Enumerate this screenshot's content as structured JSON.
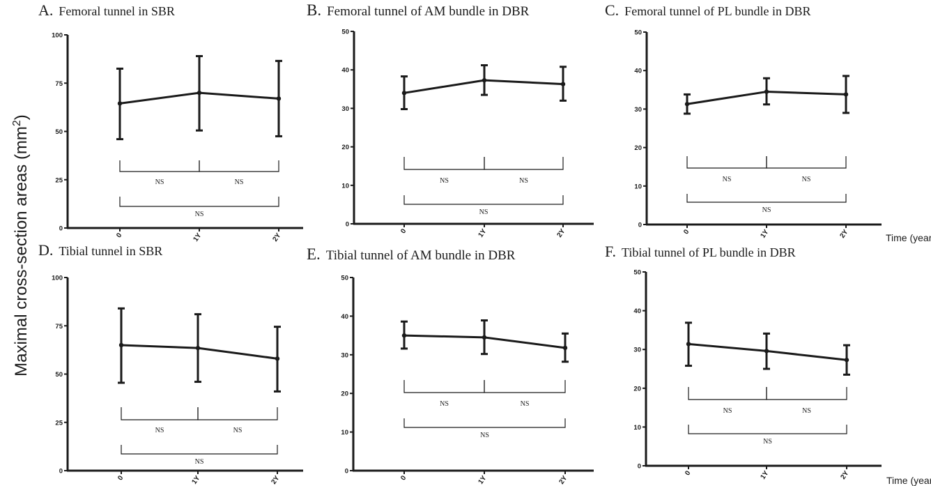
{
  "figure": {
    "y_axis_label": "Maximal cross-section areas (mm2)",
    "time_label": "Time (year)",
    "line_color": "#1a1a1a",
    "background": "#ffffff"
  },
  "chart_data": [
    {
      "type": "line",
      "title": "A.  Femoral tunnel in SBR",
      "categories": [
        "0",
        "1Y",
        "2Y"
      ],
      "series": [
        {
          "values": [
            64.5,
            70,
            67
          ],
          "error_low": [
            46,
            50.5,
            47.5
          ],
          "error_high": [
            82.5,
            89,
            86.5
          ]
        }
      ],
      "ylim": [
        0,
        100
      ],
      "yticks": [
        0,
        25,
        50,
        75,
        100
      ],
      "comparisons": [
        {
          "pair": [
            "0",
            "1Y"
          ],
          "label": "NS"
        },
        {
          "pair": [
            "1Y",
            "2Y"
          ],
          "label": "NS"
        },
        {
          "pair": [
            "0",
            "2Y"
          ],
          "label": "NS"
        }
      ]
    },
    {
      "type": "line",
      "title": "B.  Femoral tunnel of AM bundle in DBR",
      "categories": [
        "0",
        "1Y",
        "2Y"
      ],
      "series": [
        {
          "values": [
            34,
            37.3,
            36.3
          ],
          "error_low": [
            29.8,
            33.5,
            32
          ],
          "error_high": [
            38.3,
            41.2,
            40.8
          ]
        }
      ],
      "ylim": [
        0,
        50
      ],
      "yticks": [
        0,
        10,
        20,
        30,
        40,
        50
      ],
      "comparisons": [
        {
          "pair": [
            "0",
            "1Y"
          ],
          "label": "NS"
        },
        {
          "pair": [
            "1Y",
            "2Y"
          ],
          "label": "NS"
        },
        {
          "pair": [
            "0",
            "2Y"
          ],
          "label": "NS"
        }
      ]
    },
    {
      "type": "line",
      "title": "C.  Femoral tunnel of PL bundle in DBR",
      "categories": [
        "0",
        "1Y",
        "2Y"
      ],
      "series": [
        {
          "values": [
            31.3,
            34.5,
            33.8
          ],
          "error_low": [
            28.8,
            31.2,
            29
          ],
          "error_high": [
            33.8,
            38,
            38.6
          ]
        }
      ],
      "ylim": [
        0,
        50
      ],
      "yticks": [
        0,
        10,
        20,
        30,
        40,
        50
      ],
      "comparisons": [
        {
          "pair": [
            "0",
            "1Y"
          ],
          "label": "NS"
        },
        {
          "pair": [
            "1Y",
            "2Y"
          ],
          "label": "NS"
        },
        {
          "pair": [
            "0",
            "2Y"
          ],
          "label": "NS"
        }
      ]
    },
    {
      "type": "line",
      "title": "D.  Tibial tunnel in SBR",
      "categories": [
        "0",
        "1Y",
        "2Y"
      ],
      "series": [
        {
          "values": [
            65,
            63.5,
            58
          ],
          "error_low": [
            45.5,
            46,
            41
          ],
          "error_high": [
            84,
            81,
            74.5
          ]
        }
      ],
      "ylim": [
        0,
        100
      ],
      "yticks": [
        0,
        25,
        50,
        75,
        100
      ],
      "comparisons": [
        {
          "pair": [
            "0",
            "1Y"
          ],
          "label": "NS"
        },
        {
          "pair": [
            "1Y",
            "2Y"
          ],
          "label": "NS"
        },
        {
          "pair": [
            "0",
            "2Y"
          ],
          "label": "NS"
        }
      ]
    },
    {
      "type": "line",
      "title": "E.  Tibial tunnel of AM bundle in DBR",
      "categories": [
        "0",
        "1Y",
        "2Y"
      ],
      "series": [
        {
          "values": [
            35,
            34.5,
            31.8
          ],
          "error_low": [
            31.6,
            30.2,
            28.2
          ],
          "error_high": [
            38.6,
            38.9,
            35.5
          ]
        }
      ],
      "ylim": [
        0,
        50
      ],
      "yticks": [
        0,
        10,
        20,
        30,
        40,
        50
      ],
      "comparisons": [
        {
          "pair": [
            "0",
            "1Y"
          ],
          "label": "NS"
        },
        {
          "pair": [
            "1Y",
            "2Y"
          ],
          "label": "NS"
        },
        {
          "pair": [
            "0",
            "2Y"
          ],
          "label": "NS"
        }
      ]
    },
    {
      "type": "line",
      "title": "F. Tibial tunnel of PL bundle in DBR",
      "categories": [
        "0",
        "1Y",
        "2Y"
      ],
      "series": [
        {
          "values": [
            31.4,
            29.6,
            27.3
          ],
          "error_low": [
            25.8,
            25,
            23.5
          ],
          "error_high": [
            36.9,
            34.1,
            31.1
          ]
        }
      ],
      "ylim": [
        0,
        50
      ],
      "yticks": [
        0,
        10,
        20,
        30,
        40,
        50
      ],
      "comparisons": [
        {
          "pair": [
            "0",
            "1Y"
          ],
          "label": "NS"
        },
        {
          "pair": [
            "1Y",
            "2Y"
          ],
          "label": "NS"
        },
        {
          "pair": [
            "0",
            "2Y"
          ],
          "label": "NS"
        }
      ]
    }
  ]
}
